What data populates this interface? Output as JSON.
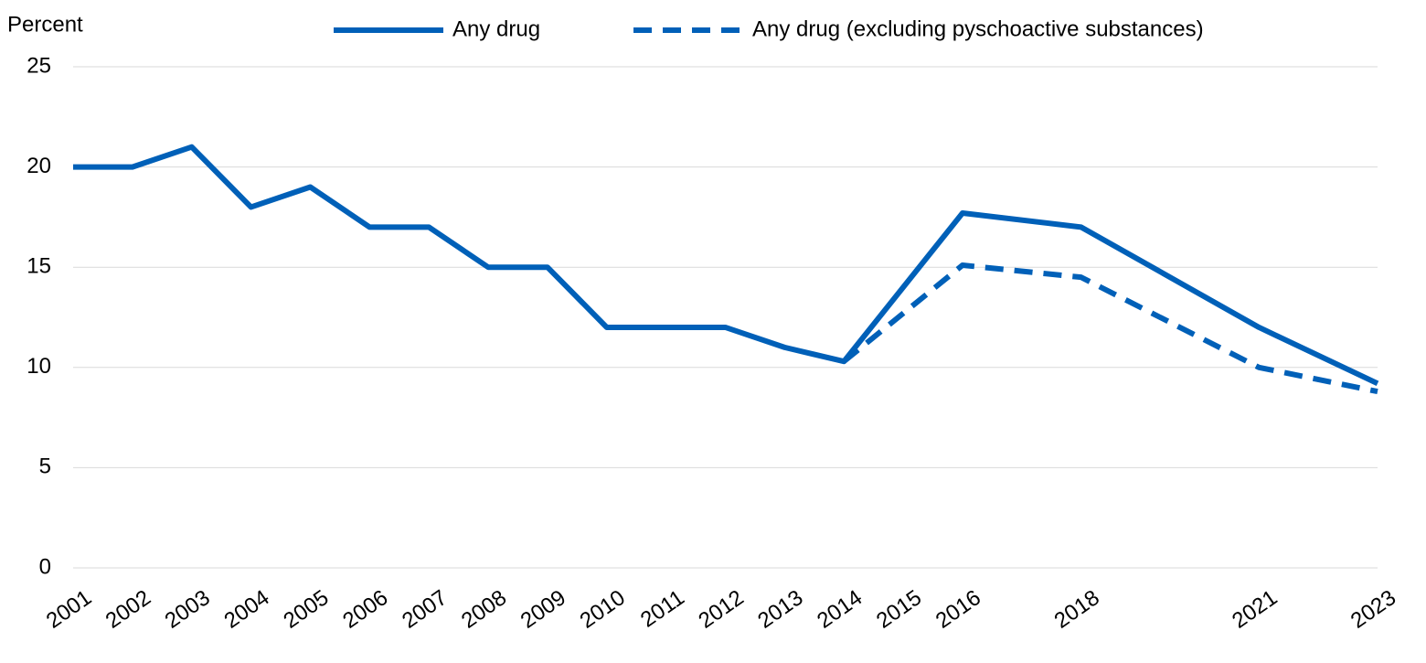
{
  "chart_data": {
    "type": "line",
    "y_label": "Percent",
    "x": [
      2001,
      2002,
      2003,
      2004,
      2005,
      2006,
      2007,
      2008,
      2009,
      2010,
      2011,
      2012,
      2013,
      2014,
      2016,
      2018,
      2021,
      2023
    ],
    "series": [
      {
        "name": "Any drug",
        "color": "#0060b8",
        "dash": "solid",
        "values": [
          20,
          20,
          21,
          18,
          19,
          17,
          17,
          15,
          15,
          12,
          12,
          12,
          11,
          10.3,
          17.7,
          17,
          12,
          9.2
        ]
      },
      {
        "name": "Any drug (excluding pyschoactive substances)",
        "color": "#0060b8",
        "dash": "dashed",
        "values": [
          null,
          null,
          null,
          null,
          null,
          null,
          null,
          null,
          null,
          null,
          null,
          null,
          null,
          10.3,
          15.1,
          14.5,
          10,
          8.8
        ]
      }
    ],
    "xlim": [
      2001,
      2023
    ],
    "xticks": [
      2001,
      2002,
      2003,
      2004,
      2005,
      2006,
      2007,
      2008,
      2009,
      2010,
      2011,
      2012,
      2013,
      2014,
      2015,
      2016,
      2018,
      2021,
      2023
    ],
    "ylim": [
      0,
      25
    ],
    "yticks": [
      0,
      5,
      10,
      15,
      20,
      25
    ],
    "grid": true
  }
}
